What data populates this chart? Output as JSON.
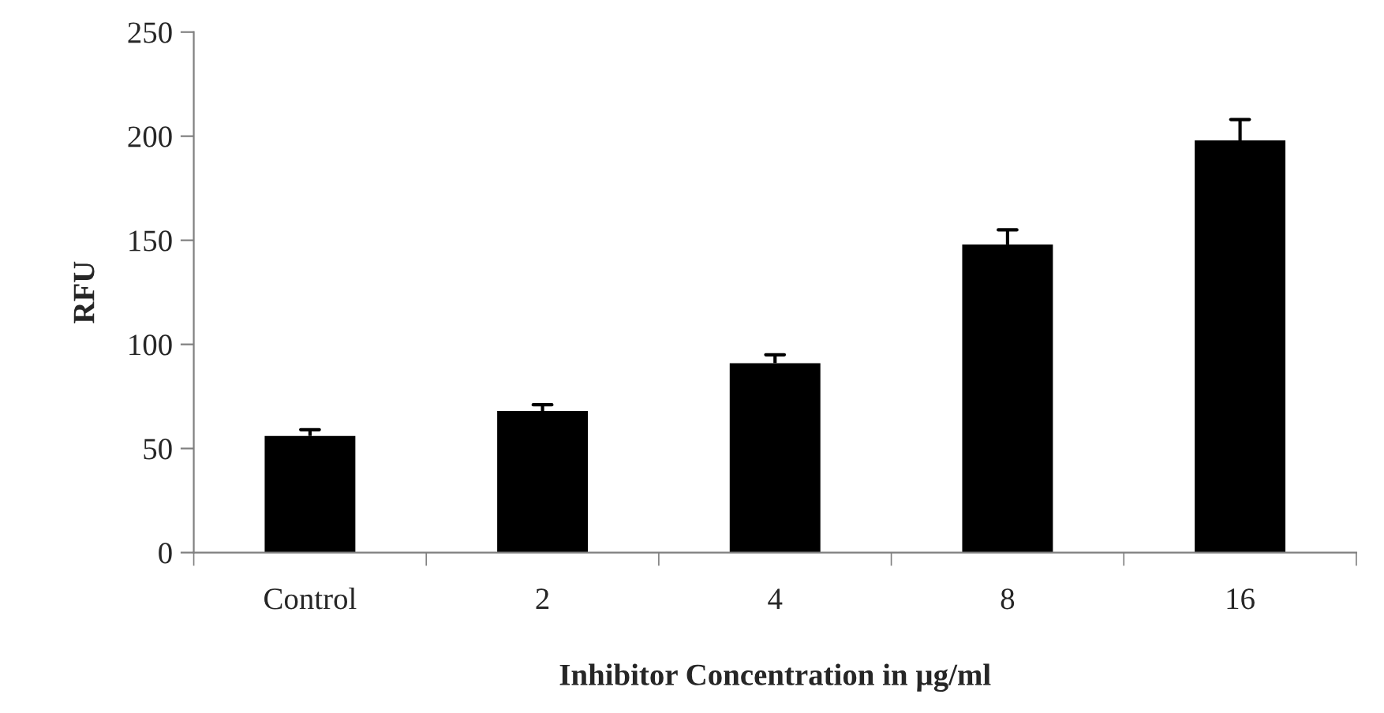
{
  "chart_data": {
    "type": "bar",
    "xlabel": "Inhibitor Concentration in µg/ml",
    "ylabel": "RFU",
    "categories": [
      "Control",
      "2",
      "4",
      "8",
      "16"
    ],
    "values": [
      56,
      68,
      91,
      148,
      198
    ],
    "errors": [
      [
        56,
        59
      ],
      [
        68,
        71
      ],
      [
        91,
        95
      ],
      [
        148,
        155
      ],
      [
        198,
        208
      ]
    ],
    "color": "#000000",
    "ylim": [
      0,
      250
    ],
    "yticks": [
      0,
      50,
      100,
      150,
      200,
      250
    ],
    "grid": false
  }
}
